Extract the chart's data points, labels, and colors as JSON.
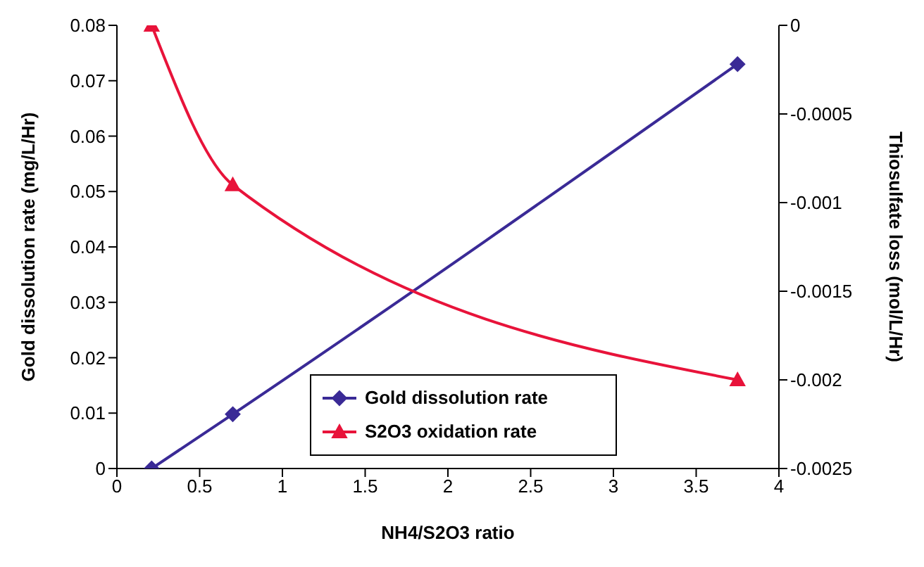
{
  "chart_data": {
    "type": "line",
    "xlabel": "NH4/S2O3 ratio",
    "ylabel": "Gold dissolution rate (mg/L/Hr)",
    "y2label": "Thiosulfate loss (mol/L/Hr)",
    "xlim": [
      0,
      4
    ],
    "xticks": [
      0,
      0.5,
      1,
      1.5,
      2,
      2.5,
      3,
      3.5,
      4
    ],
    "ylim": [
      0,
      0.08
    ],
    "yticks": [
      0,
      0.01,
      0.02,
      0.03,
      0.04,
      0.05,
      0.06,
      0.07,
      0.08
    ],
    "y2lim": [
      -0.0025,
      0
    ],
    "y2ticks": [
      -0.0025,
      -0.002,
      -0.0015,
      -0.001,
      -0.0005,
      0
    ],
    "legend": "bottom",
    "grid": false,
    "line_style": "solid",
    "series": [
      {
        "name": "Gold dissolution rate",
        "color": "#3a2a96",
        "marker": "diamond",
        "x": [
          0.21,
          0.7,
          3.75
        ],
        "values": [
          0,
          0.0098,
          0.073
        ]
      },
      {
        "name": "S2O3 oxidation rate",
        "color": "#e8133a",
        "marker": "triangle",
        "axis": "y2",
        "x": [
          0.21,
          0.7,
          3.75
        ],
        "values": [
          0,
          -0.0009,
          -0.002
        ]
      }
    ]
  }
}
